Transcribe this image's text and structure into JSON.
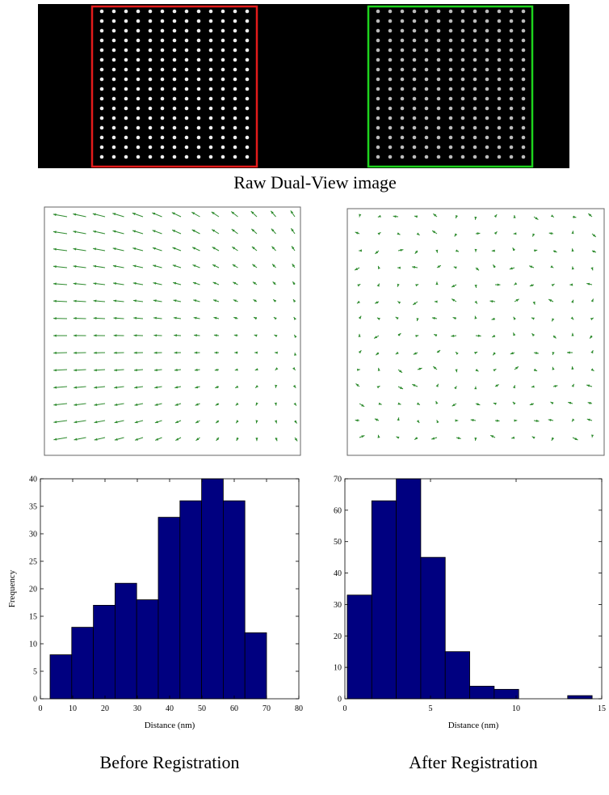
{
  "raw_image_caption": "Raw Dual-View image",
  "chart_data": [
    {
      "type": "histogram",
      "caption": "Before Registration",
      "xlabel": "Distance (nm)",
      "ylabel": "Frequency",
      "bins": [
        3,
        9.7,
        16.4,
        23.1,
        29.8,
        36.5,
        43.2,
        49.9,
        56.6,
        63.3,
        70
      ],
      "values": [
        8,
        13,
        17,
        21,
        18,
        33,
        36,
        40,
        36,
        12
      ],
      "color": "#000080",
      "xlim": [
        0,
        80
      ],
      "xticks": [
        0,
        10,
        20,
        30,
        40,
        50,
        60,
        70,
        80
      ],
      "ylim": [
        0,
        40
      ],
      "yticks": [
        0,
        5,
        10,
        15,
        20,
        25,
        30,
        35,
        40
      ]
    },
    {
      "type": "histogram",
      "caption": "After Registration",
      "xlabel": "Distance (nm)",
      "bins": [
        0.14,
        1.57,
        3.0,
        4.43,
        5.86,
        7.29,
        8.72,
        10.15,
        11.58,
        13.01,
        14.44
      ],
      "values": [
        33,
        63,
        70,
        45,
        15,
        4,
        3,
        0,
        0,
        1
      ],
      "color": "#000080",
      "xlim": [
        0,
        15
      ],
      "xticks": [
        0,
        5,
        10,
        15
      ],
      "ylim": [
        0,
        70
      ],
      "yticks": [
        0,
        10,
        20,
        30,
        40,
        50,
        60,
        70
      ]
    }
  ]
}
